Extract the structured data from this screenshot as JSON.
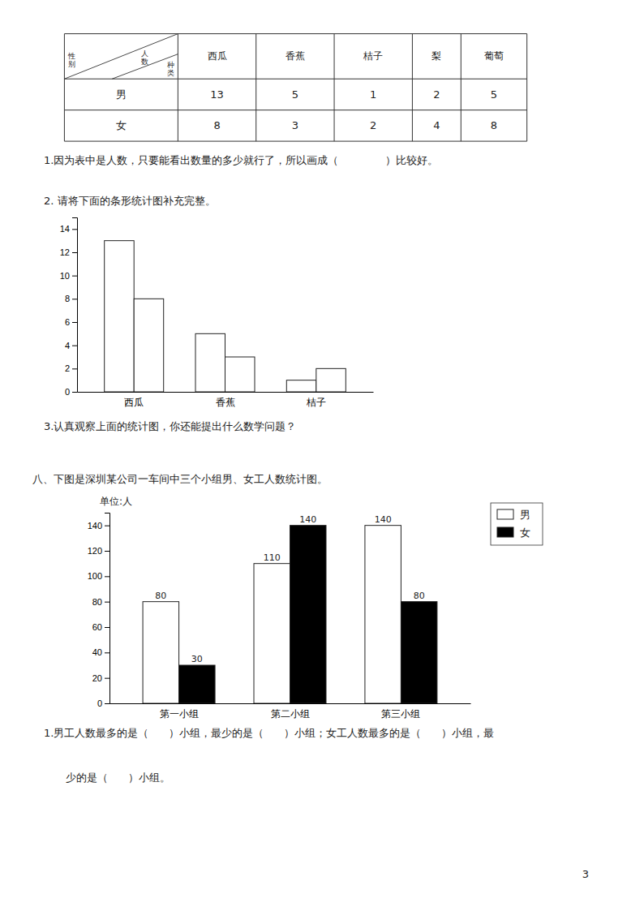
{
  "chart_data": [
    {
      "type": "table",
      "categories": [
        "西瓜",
        "香蕉",
        "桔子",
        "梨",
        "葡萄"
      ],
      "series": [
        {
          "name": "男",
          "values": [
            13,
            5,
            1,
            2,
            5
          ]
        },
        {
          "name": "女",
          "values": [
            8,
            3,
            2,
            4,
            8
          ]
        }
      ],
      "annotations": [
        "种类",
        "人数",
        "性别"
      ]
    },
    {
      "type": "bar",
      "categories": [
        "西瓜",
        "香蕉",
        "桔子"
      ],
      "series": [
        {
          "color": "#ffffff",
          "values": [
            13,
            5,
            1
          ]
        },
        {
          "color": "#ffffff",
          "values": [
            8,
            3,
            2
          ]
        }
      ],
      "ylim": [
        0,
        15
      ],
      "yticks": [
        0,
        2,
        4,
        6,
        8,
        10,
        12,
        14
      ],
      "annotations": [
        "1.因为表中是人数，只要能看出数量的多少就行了，所以画成（              ）比较好。",
        "2. 请将下面的条形统计图补充完整。",
        "3.认真观察上面的统计图，你还能提出什么数学问题？"
      ]
    },
    {
      "type": "bar",
      "title": "八、下图是深圳某公司一车间中三个小组男、女工人数统计图。",
      "categories": [
        "第一小组",
        "第二小组",
        "第三小组"
      ],
      "series": [
        {
          "name": "男",
          "color": "#ffffff",
          "values": [
            80,
            110,
            140
          ]
        },
        {
          "name": "女",
          "color": "#000000",
          "values": [
            30,
            140,
            80
          ]
        }
      ],
      "ylim": [
        0,
        150
      ],
      "yticks": [
        0,
        20,
        40,
        60,
        80,
        100,
        120,
        140
      ],
      "ylabel": "单位:人",
      "data_labels": true,
      "legend": "right",
      "annotations": [
        "1.男工人数最多的是（      ）小组，最少的是（      ）小组；女工人数最多的是（      ）小组，最",
        "   少的是（      ）小组。",
        "3"
      ]
    }
  ]
}
